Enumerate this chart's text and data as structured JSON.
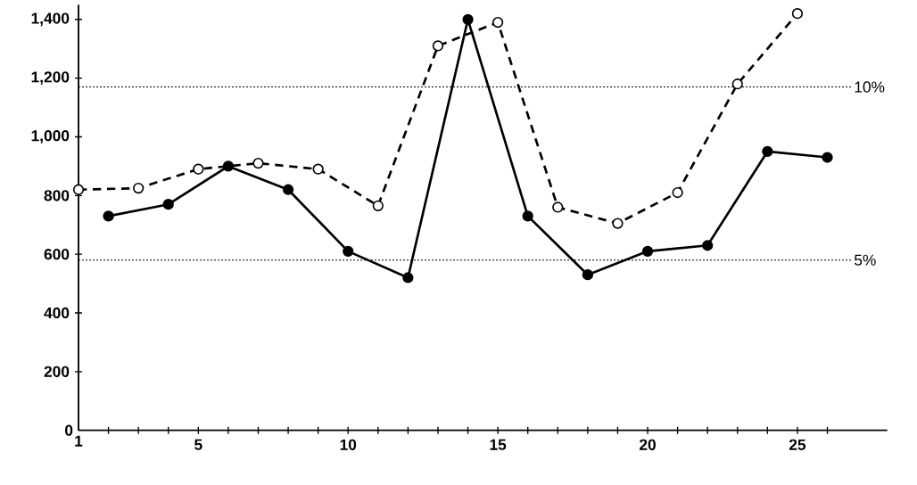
{
  "chart_data": {
    "type": "line",
    "xlim": [
      1,
      28
    ],
    "xticks": [
      1,
      {
        "value": 2,
        "label": null
      },
      {
        "value": 3,
        "label": null
      },
      {
        "value": 4,
        "label": null
      },
      5,
      {
        "value": 6,
        "label": null
      },
      {
        "value": 7,
        "label": null
      },
      {
        "value": 8,
        "label": null
      },
      {
        "value": 9,
        "label": null
      },
      10,
      {
        "value": 11,
        "label": null
      },
      {
        "value": 12,
        "label": null
      },
      {
        "value": 13,
        "label": null
      },
      {
        "value": 14,
        "label": null
      },
      15,
      {
        "value": 16,
        "label": null
      },
      {
        "value": 17,
        "label": null
      },
      {
        "value": 18,
        "label": null
      },
      {
        "value": 19,
        "label": null
      },
      20,
      {
        "value": 21,
        "label": null
      },
      {
        "value": 22,
        "label": null
      },
      {
        "value": 23,
        "label": null
      },
      {
        "value": 24,
        "label": null
      },
      25,
      {
        "value": 26,
        "label": null
      }
    ],
    "ylim": [
      0,
      1450
    ],
    "yticks": [
      0,
      200,
      400,
      600,
      800,
      {
        "value": 1000,
        "label": "1,000"
      },
      {
        "value": 1200,
        "label": "1,200"
      },
      {
        "value": 1400,
        "label": "1,400"
      }
    ],
    "series": [
      {
        "color": "#000000",
        "line_style": "solid",
        "marker": "circle",
        "x": [
          2,
          4,
          6,
          8,
          10,
          12,
          14,
          16,
          18,
          20,
          22,
          24,
          26
        ],
        "values": [
          730,
          770,
          900,
          820,
          610,
          520,
          1400,
          730,
          530,
          610,
          630,
          950,
          930
        ]
      },
      {
        "color": "#000000",
        "line_style": "dashed",
        "marker": "circle",
        "x": [
          1,
          3,
          5,
          7,
          9,
          11,
          13,
          15,
          17,
          19,
          21,
          23,
          25
        ],
        "values": [
          820,
          825,
          890,
          910,
          890,
          765,
          1310,
          1390,
          760,
          705,
          810,
          1180,
          1420
        ]
      }
    ],
    "ref_lines": [
      {
        "axis": "y",
        "value": 1170,
        "line_style": "dotted",
        "color": "#000000"
      },
      {
        "axis": "y",
        "value": 580,
        "line_style": "dotted",
        "color": "#000000"
      }
    ],
    "annotations": [
      {
        "text": "10%",
        "x": 26.8,
        "y": 1170
      },
      {
        "text": "5%",
        "x": 26.8,
        "y": 580
      }
    ]
  }
}
